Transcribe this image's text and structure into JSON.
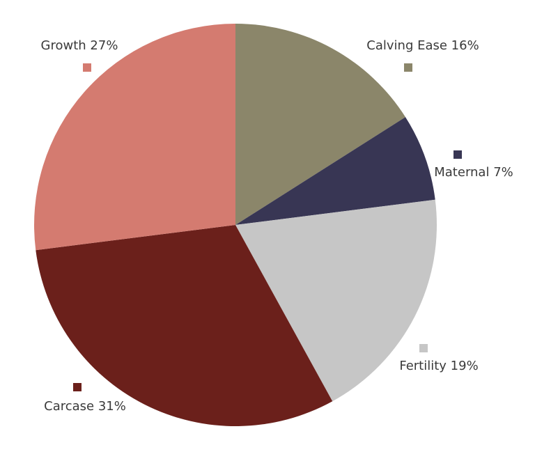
{
  "chart_data": {
    "type": "pie",
    "values": [
      16,
      7,
      19,
      31,
      27
    ],
    "value_labels": [
      "Calving Ease 16%",
      "Maternal 7%",
      "Fertility 19%",
      "Carcase 31%",
      "Growth 27%"
    ],
    "colors": [
      "#8b866a",
      "#383654",
      "#c6c6c6",
      "#6b201b",
      "#d47b70"
    ]
  }
}
